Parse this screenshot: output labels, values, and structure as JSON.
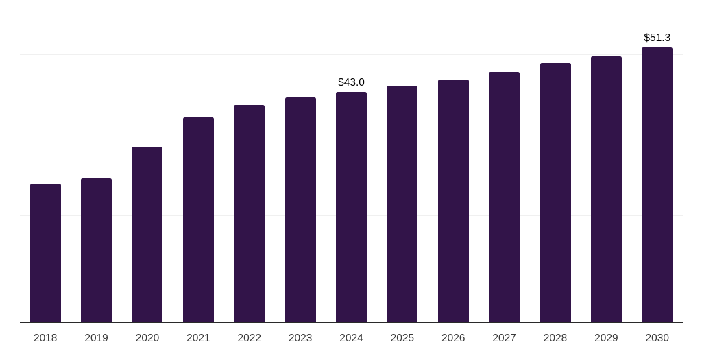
{
  "chart_style": {
    "background_color": "#ffffff",
    "bar_color": "#321449",
    "gridline_color": "#f0f0f0",
    "axis_line_color": "#2a2a2a",
    "tick_label_color": "#3a3a3a",
    "value_label_color": "#000000"
  },
  "chart_data": {
    "type": "bar",
    "title": "",
    "xlabel": "",
    "ylabel": "",
    "categories": [
      "2018",
      "2019",
      "2020",
      "2021",
      "2022",
      "2023",
      "2024",
      "2025",
      "2026",
      "2027",
      "2028",
      "2029",
      "2030"
    ],
    "values": [
      25.9,
      26.9,
      32.7,
      38.3,
      40.5,
      42.0,
      43.0,
      44.1,
      45.3,
      46.7,
      48.3,
      49.7,
      51.3
    ],
    "point_labels": [
      "",
      "",
      "",
      "",
      "",
      "",
      "$43.0",
      "",
      "",
      "",
      "",
      "",
      "$51.3"
    ],
    "ylim": [
      0,
      60
    ],
    "gridline_step": 10,
    "grid": "horizontal-only",
    "y_axis_tick_labels_visible": false,
    "legend": "none"
  }
}
